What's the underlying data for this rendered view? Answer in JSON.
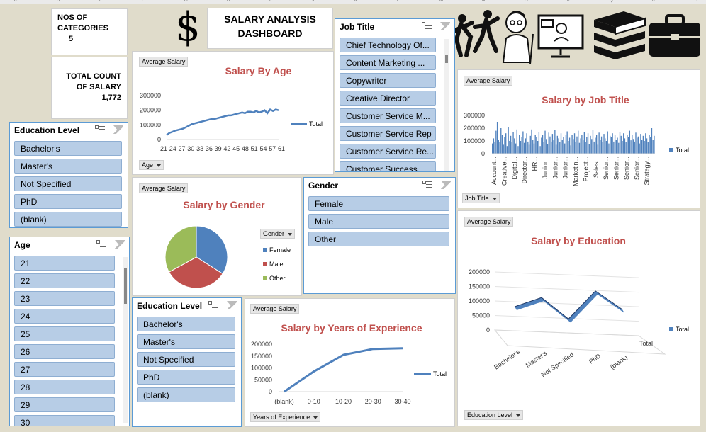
{
  "column_letters": [
    "C",
    "D",
    "E",
    "F",
    "G",
    "H",
    "I",
    "J",
    "K",
    "L",
    "M",
    "N",
    "O",
    "P",
    "Q",
    "R",
    "S"
  ],
  "kpi": {
    "categories_label": "NOS OF CATEGORIES",
    "categories_value": "5",
    "count_label": "TOTAL COUNT",
    "count_value_label": "OF SALARY 1,772"
  },
  "dashboard": {
    "title_line1": "SALARY ANALYSIS",
    "title_line2": "DASHBOARD",
    "dollar_symbol": "$"
  },
  "slicers": {
    "education_level_left": {
      "title": "Education Level",
      "items": [
        "Bachelor's",
        "Master's",
        "Not Specified",
        "PhD",
        "(blank)"
      ]
    },
    "age": {
      "title": "Age",
      "items": [
        "21",
        "22",
        "23",
        "24",
        "25",
        "26",
        "27",
        "28",
        "29",
        "30"
      ]
    },
    "job_title": {
      "title": "Job Title",
      "items": [
        "Chief Technology Of...",
        "Content Marketing ...",
        "Copywriter",
        "Creative Director",
        "Customer Service M...",
        "Customer Service Rep",
        "Customer Service Re...",
        "Customer Success ..."
      ]
    },
    "gender": {
      "title": "Gender",
      "items": [
        "Female",
        "Male",
        "Other"
      ]
    },
    "education_level_bottom": {
      "title": "Education Level",
      "items": [
        "Bachelor's",
        "Master's",
        "Not Specified",
        "PhD",
        "(blank)"
      ]
    }
  },
  "chart_common": {
    "value_button": "Average Salary",
    "legend_total": "Total",
    "accent": "#4f81bd",
    "title_color": "#c0504d"
  },
  "chart_data": [
    {
      "id": "age",
      "type": "line",
      "title": "Salary By Age",
      "field_button": "Age",
      "x_ticks": [
        "21",
        "24",
        "27",
        "30",
        "33",
        "36",
        "39",
        "42",
        "45",
        "48",
        "51",
        "54",
        "57",
        "61"
      ],
      "y_ticks": [
        "300000",
        "200000",
        "100000",
        "0"
      ],
      "ylim": [
        0,
        300000
      ],
      "x": [
        21,
        22,
        23,
        24,
        25,
        26,
        27,
        28,
        29,
        30,
        31,
        32,
        33,
        34,
        35,
        36,
        37,
        38,
        39,
        40,
        41,
        42,
        43,
        44,
        45,
        46,
        47,
        48,
        49,
        50,
        51,
        52,
        53,
        54,
        55,
        56,
        57,
        58,
        59,
        60,
        61
      ],
      "values": [
        30000,
        45000,
        52000,
        60000,
        65000,
        70000,
        75000,
        85000,
        95000,
        105000,
        110000,
        115000,
        120000,
        125000,
        130000,
        135000,
        140000,
        140000,
        145000,
        150000,
        155000,
        160000,
        165000,
        165000,
        170000,
        175000,
        180000,
        185000,
        180000,
        190000,
        190000,
        185000,
        195000,
        185000,
        190000,
        200000,
        180000,
        205000,
        195000,
        205000,
        200000
      ],
      "legend": [
        "Total"
      ]
    },
    {
      "id": "job_title",
      "type": "bar",
      "title": "Salary by Job Title",
      "field_button": "Job Title",
      "y_ticks": [
        "300000",
        "200000",
        "100000",
        "0"
      ],
      "ylim": [
        0,
        300000
      ],
      "x_labels": [
        "Account...",
        "Creative...",
        "Digital...",
        "Director...",
        "HR...",
        "Junior...",
        "Junior...",
        "Junior...",
        "Marketin...",
        "Project...",
        "Sales...",
        "Senior...",
        "Senior...",
        "Senior...",
        "Senior...",
        "Strategy..."
      ],
      "values": [
        80000,
        120000,
        95000,
        180000,
        250000,
        110000,
        90000,
        200000,
        150000,
        70000,
        130000,
        160000,
        60000,
        210000,
        100000,
        140000,
        90000,
        170000,
        120000,
        80000,
        190000,
        60000,
        150000,
        100000,
        130000,
        175000,
        85000,
        120000,
        160000,
        95000,
        70000,
        140000,
        190000,
        110000,
        80000,
        150000,
        130000,
        100000,
        170000,
        60000,
        125000,
        145000,
        90000,
        180000,
        115000,
        75000,
        165000,
        135000,
        95000,
        155000,
        105000,
        185000,
        70000,
        140000,
        120000,
        90000,
        160000,
        110000,
        130000,
        80000,
        150000,
        175000,
        100000,
        125000,
        65000,
        145000,
        115000,
        160000,
        95000,
        135000,
        180000,
        85000,
        120000,
        150000,
        105000,
        170000,
        90000,
        130000,
        160000,
        75000,
        140000,
        115000,
        185000,
        95000,
        125000,
        150000,
        70000,
        165000,
        110000,
        135000,
        90000,
        155000,
        120000,
        100000,
        175000,
        80000,
        140000,
        130000,
        160000,
        95000,
        150000,
        110000,
        125000,
        85000,
        170000,
        140000,
        100000,
        160000,
        120000,
        90000,
        150000,
        130000,
        180000,
        105000,
        145000,
        115000,
        95000,
        165000,
        125000,
        135000,
        80000,
        155000,
        110000,
        140000,
        100000,
        160000,
        120000,
        90000,
        150000,
        130000,
        200000,
        110000,
        140000
      ],
      "legend": [
        "Total"
      ]
    },
    {
      "id": "gender",
      "type": "pie",
      "title": "Salary by Gender",
      "field_button": "Gender",
      "categories": [
        "Female",
        "Male",
        "Other"
      ],
      "values": [
        34,
        33,
        33
      ],
      "colors": [
        "#4f81bd",
        "#c0504d",
        "#9bbb59"
      ]
    },
    {
      "id": "education",
      "type": "line",
      "title": "Salary by Education",
      "field_button": "Education Level",
      "categories": [
        "Bachelor's",
        "Master's",
        "Not Specified",
        "PhD",
        "(blank)"
      ],
      "values": [
        95000,
        130000,
        60000,
        160000,
        100000
      ],
      "y_ticks": [
        "200000",
        "150000",
        "100000",
        "50000",
        "0"
      ],
      "ylim": [
        0,
        200000
      ],
      "series_label": "Total",
      "legend": [
        "Total"
      ]
    },
    {
      "id": "experience",
      "type": "line",
      "title": "Salary by Years of Experience",
      "field_button": "Years of Experience",
      "categories": [
        "(blank)",
        "0-10",
        "10-20",
        "20-30",
        "30-40"
      ],
      "values": [
        0,
        85000,
        155000,
        180000,
        183000
      ],
      "y_ticks": [
        "200000",
        "150000",
        "100000",
        "50000",
        "0"
      ],
      "ylim": [
        0,
        200000
      ],
      "legend": [
        "Total"
      ]
    }
  ]
}
